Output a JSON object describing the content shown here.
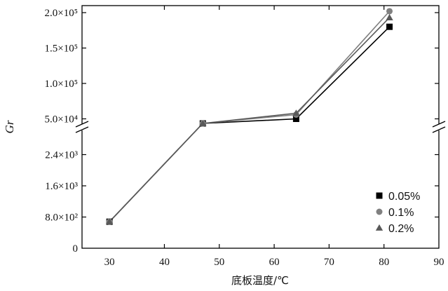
{
  "chart_data": {
    "type": "line",
    "title": "",
    "xlabel": "底板温度/℃",
    "ylabel": "Gr",
    "x": [
      30,
      47,
      64,
      81
    ],
    "xlim": [
      25,
      90
    ],
    "x_ticks": [
      "30",
      "40",
      "50",
      "60",
      "70",
      "80",
      "90"
    ],
    "y_axis_break": true,
    "y_lower_segment": {
      "range": [
        0,
        3200
      ],
      "ticks": [
        "0",
        "8.0×10²",
        "1.6×10³",
        "2.4×10³"
      ]
    },
    "y_upper_segment": {
      "range": [
        0,
        200000
      ],
      "ticks": [
        "5.0×10⁴",
        "1.0×10⁵",
        "1.5×10⁵",
        "2.0×10⁵"
      ]
    },
    "series": [
      {
        "name": "0.05%",
        "marker": "square",
        "color": "#000000",
        "values": [
          680,
          3200,
          50000,
          180000
        ]
      },
      {
        "name": "0.1%",
        "marker": "circle",
        "color": "#808080",
        "values": [
          680,
          3200,
          56000,
          202000
        ]
      },
      {
        "name": "0.2%",
        "marker": "triangle",
        "color": "#595959",
        "values": [
          680,
          3200,
          58000,
          193000
        ]
      }
    ],
    "grid": false,
    "legend_position": "bottom-right"
  }
}
